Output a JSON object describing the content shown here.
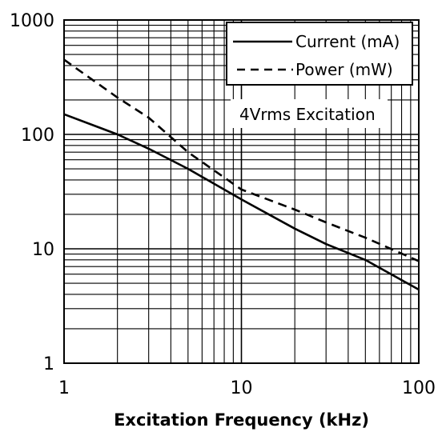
{
  "chart_data": {
    "type": "line",
    "title": "",
    "xlabel": "Excitation Frequency (kHz)",
    "ylabel": "",
    "x_scale": "log",
    "y_scale": "log",
    "xlim": [
      1,
      100
    ],
    "ylim": [
      1,
      1000
    ],
    "grid": true,
    "legend_position": "top-right",
    "x_ticks": [
      "1",
      "10",
      "100"
    ],
    "y_ticks": [
      "1",
      "10",
      "100",
      "1000"
    ],
    "series": [
      {
        "name": "Current (mA)",
        "style": "solid",
        "x": [
          1,
          2,
          3,
          5,
          10,
          20,
          30,
          50,
          100
        ],
        "y": [
          150,
          100,
          75,
          50,
          27,
          15,
          11,
          8,
          4.4
        ]
      },
      {
        "name": "Power (mW)",
        "style": "dashed",
        "x": [
          1,
          2,
          3,
          5,
          10,
          20,
          30,
          50,
          100
        ],
        "y": [
          450,
          210,
          140,
          70,
          33,
          22,
          17,
          12.5,
          7.8
        ]
      }
    ],
    "annotations": [
      "4Vrms Excitation"
    ]
  }
}
